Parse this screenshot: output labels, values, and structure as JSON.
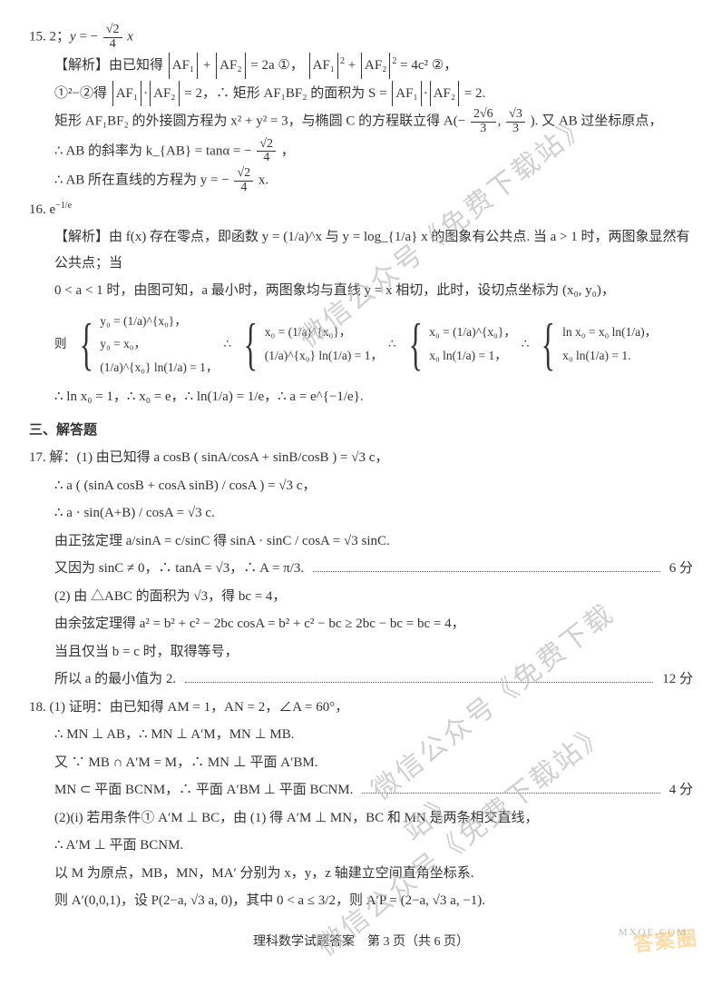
{
  "watermark": "微信公众号《免费下载站》",
  "corner_brand": "答案圈",
  "mx": "MXQE.COM",
  "footer": "理科数学试题答案　第 3 页（共 6 页）",
  "q15": {
    "head": "15. 2；y = −(√2 / 4) x",
    "l1a": "【解析】由已知得",
    "l1b": "= 2a ①，",
    "l1c": "= 4c² ②，",
    "af1": "AF₁",
    "af2": "AF₂",
    "l2a": "①²−②得",
    "l2b": "= 2，∴ 矩形 AF₁BF₂ 的面积为 S =",
    "l2c": "= 2.",
    "l3a": "矩形 AF₁BF₂ 的外接圆方程为 x² + y² = 3，与椭圆 C 的方程联立得 A(−",
    "l3b": "). 又 AB 过坐标原点，",
    "twoSqrt6over3_top": "2√6",
    "twoSqrt6over3_bot": "3",
    "sqrt3over3_top": "√3",
    "sqrt3over3_bot": "3",
    "l4": "∴ AB 的斜率为 k_{AB} = tanα = −",
    "sqrt2over4_top": "√2",
    "sqrt2over4_bot": "4",
    "comma": "，",
    "l5a": "∴ AB 所在直线的方程为 y = −",
    "l5b": " x."
  },
  "q16": {
    "head": "16. e^{−1/e}",
    "l1": "【解析】由 f(x) 存在零点，即函数 y = (1/a)^x 与 y = log_{1/a} x 的图象有公共点. 当 a > 1 时，两图象显然有公共点；当",
    "l2": "0 < a < 1 时，由图可知，a 最小时，两图象均与直线 y = x 相切，此时，设切点坐标为 (x₀, y₀)，",
    "brace_lead": "则",
    "b1": [
      "y₀ = (1/a)^{x₀}，",
      "y₀ = x₀，",
      "(1/a)^{x₀} ln(1/a) = 1，"
    ],
    "sep": "∴",
    "b2": [
      "x₀ = (1/a)^{x₀}，",
      "(1/a)^{x₀} ln(1/a) = 1，"
    ],
    "b3": [
      "x₀ = (1/a)^{x₀}，",
      "x₀ ln(1/a) = 1，"
    ],
    "b4": [
      "ln x₀ = x₀ ln(1/a)，",
      "x₀ ln(1/a) = 1."
    ],
    "l3": "∴ ln x₀ = 1，∴ x₀ = e，∴ ln(1/a) = 1/e，∴ a = e^{−1/e}."
  },
  "sec3": "三、解答题",
  "q17": {
    "l1": "17. 解：(1) 由已知得 a cosB ( sinA/cosA + sinB/cosB ) = √3 c，",
    "l2": "∴ a ( (sinA cosB + cosA sinB) / cosA ) = √3 c，",
    "l3": "∴ a · sin(A+B) / cosA = √3 c.",
    "l4": "由正弦定理 a/sinA = c/sinC 得 sinA · sinC / cosA = √3 sinC.",
    "l5a": "又因为 sinC ≠ 0，∴ tanA = √3，∴ A = π/3.",
    "score6": "6 分",
    "l6": "(2) 由 △ABC 的面积为 √3，得 bc = 4，",
    "l7": "由余弦定理得 a² = b² + c² − 2bc cosA = b² + c² − bc ≥ 2bc − bc = bc = 4，",
    "l8": "当且仅当 b = c 时，取得等号，",
    "l9a": "所以 a 的最小值为 2.",
    "score12": "12 分"
  },
  "q18": {
    "l1": "18. (1) 证明：由已知得 AM = 1，AN = 2，∠A = 60°，",
    "l2": "∴ MN ⊥ AB，∴ MN ⊥ A′M，MN ⊥ MB.",
    "l3": "又 ∵ MB ∩ A′M = M，∴ MN ⊥ 平面 A′BM.",
    "l4a": "MN ⊂ 平面 BCNM，∴ 平面 A′BM ⊥ 平面 BCNM.",
    "score4": "4 分",
    "l5": "(2)(i) 若用条件① A′M ⊥ BC，由 (1) 得 A′M ⊥ MN，BC 和 MN 是两条相交直线，",
    "l6": "∴ A′M ⊥ 平面 BCNM.",
    "l7": "以 M 为原点，MB，MN，MA′ 分别为 x，y，z 轴建立空间直角坐标系.",
    "l8": "则 A′(0,0,1)，设 P(2−a, √3 a, 0)，其中 0 < a ≤ 3/2，则 A′P = (2−a, √3 a, −1)."
  }
}
